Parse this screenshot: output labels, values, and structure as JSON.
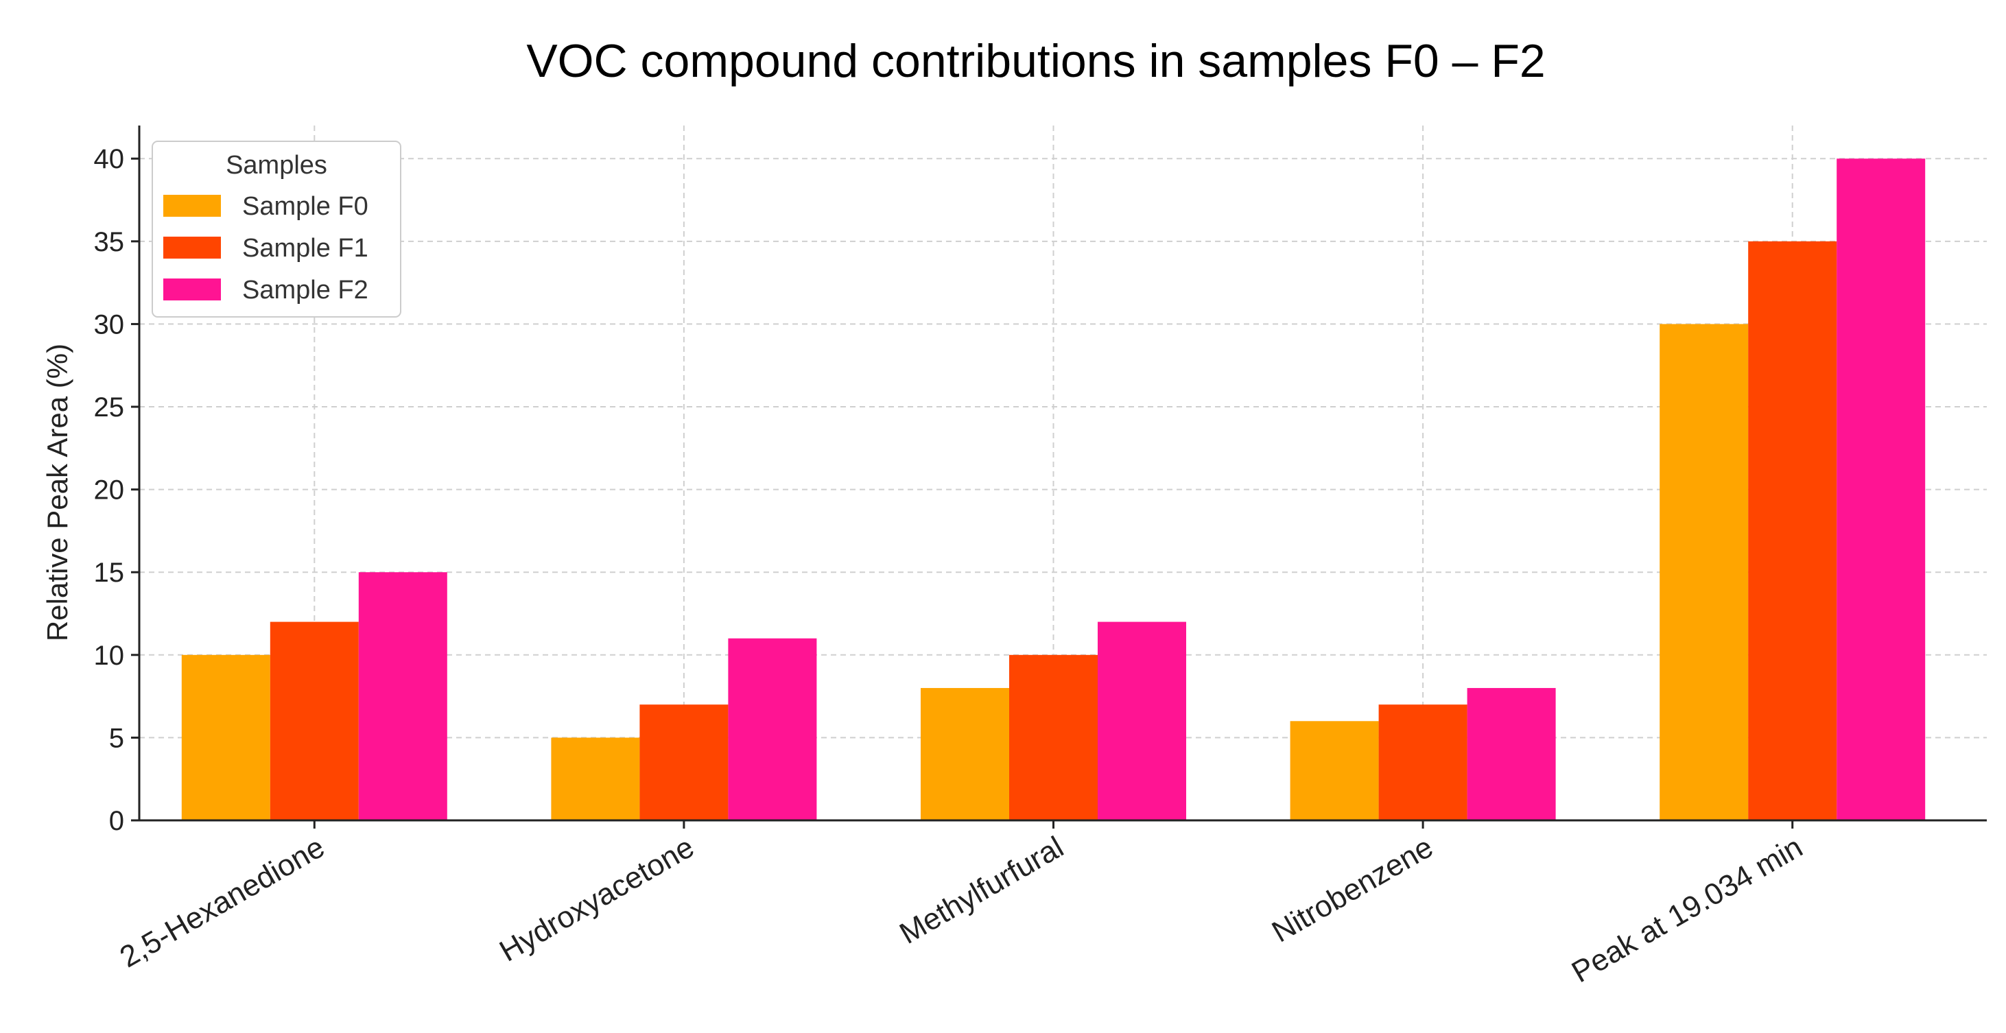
{
  "chart_data": {
    "type": "bar",
    "title": "VOC compound contributions in samples F0 – F2",
    "xlabel": "",
    "ylabel": "Relative Peak Area (%)",
    "ylim": [
      0,
      42
    ],
    "yticks": [
      0,
      5,
      10,
      15,
      20,
      25,
      30,
      35,
      40
    ],
    "grid": true,
    "legend_title": "Samples",
    "legend_position": "top-left",
    "categories": [
      "2,5-Hexanedione",
      "Hydroxyacetone",
      "Methylfurfural",
      "Nitrobenzene",
      "Peak at 19.034 min"
    ],
    "series": [
      {
        "name": "Sample F0",
        "color": "#FFA500",
        "values": [
          10,
          5,
          8,
          6,
          30
        ]
      },
      {
        "name": "Sample F1",
        "color": "#FF4500",
        "values": [
          12,
          7,
          10,
          7,
          35
        ]
      },
      {
        "name": "Sample F2",
        "color": "#FF1493",
        "values": [
          15,
          11,
          12,
          8,
          40
        ]
      }
    ]
  }
}
